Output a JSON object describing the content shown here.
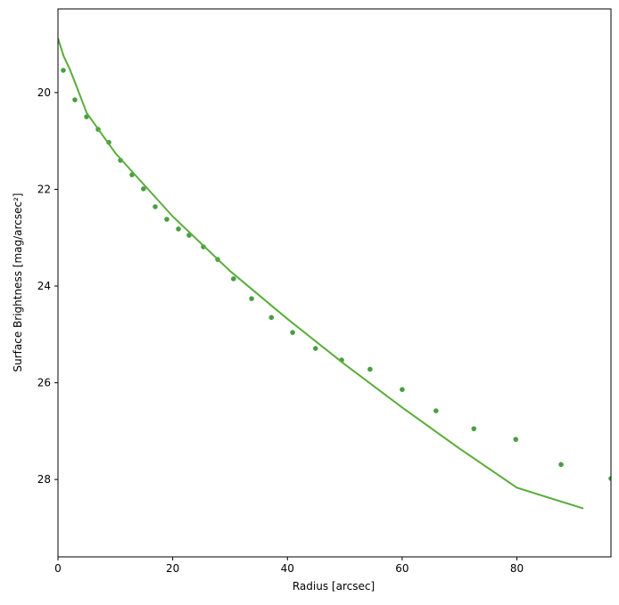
{
  "chart_data": {
    "type": "scatter",
    "x_label": "Radius [arcsec]",
    "y_label": "Surface Brightness [mag/arcsec²]",
    "xlim": [
      0,
      96.4
    ],
    "ylim": [
      29.6,
      18.27
    ],
    "xticks": [
      0,
      20,
      40,
      60,
      80
    ],
    "yticks": [
      20,
      22,
      24,
      26,
      28
    ],
    "grid": false,
    "series": [
      {
        "mode": "markers",
        "color": "#4a9e45",
        "x": [
          0.93,
          2.95,
          4.98,
          7.0,
          8.86,
          10.9,
          12.9,
          14.9,
          16.95,
          18.97,
          21.0,
          22.86,
          25.35,
          27.84,
          30.6,
          33.75,
          37.2,
          40.9,
          44.9,
          49.45,
          54.4,
          60.0,
          65.9,
          72.5,
          79.8,
          87.7,
          96.4
        ],
        "values": [
          19.54,
          20.15,
          20.5,
          20.76,
          21.03,
          21.4,
          21.7,
          21.99,
          22.36,
          22.62,
          22.82,
          22.95,
          23.19,
          23.45,
          23.85,
          24.26,
          24.65,
          24.96,
          25.29,
          25.53,
          25.72,
          26.14,
          26.58,
          26.95,
          27.17,
          27.69,
          27.98
        ]
      },
      {
        "mode": "line",
        "color": "#5aad3a",
        "x": [
          0,
          1,
          2,
          3,
          5,
          10,
          20,
          30,
          40,
          50,
          60,
          70,
          80,
          91.6
        ],
        "values": [
          18.88,
          19.25,
          19.5,
          19.8,
          20.42,
          21.25,
          22.56,
          23.69,
          24.68,
          25.62,
          26.51,
          27.36,
          28.17,
          28.6
        ]
      }
    ]
  }
}
